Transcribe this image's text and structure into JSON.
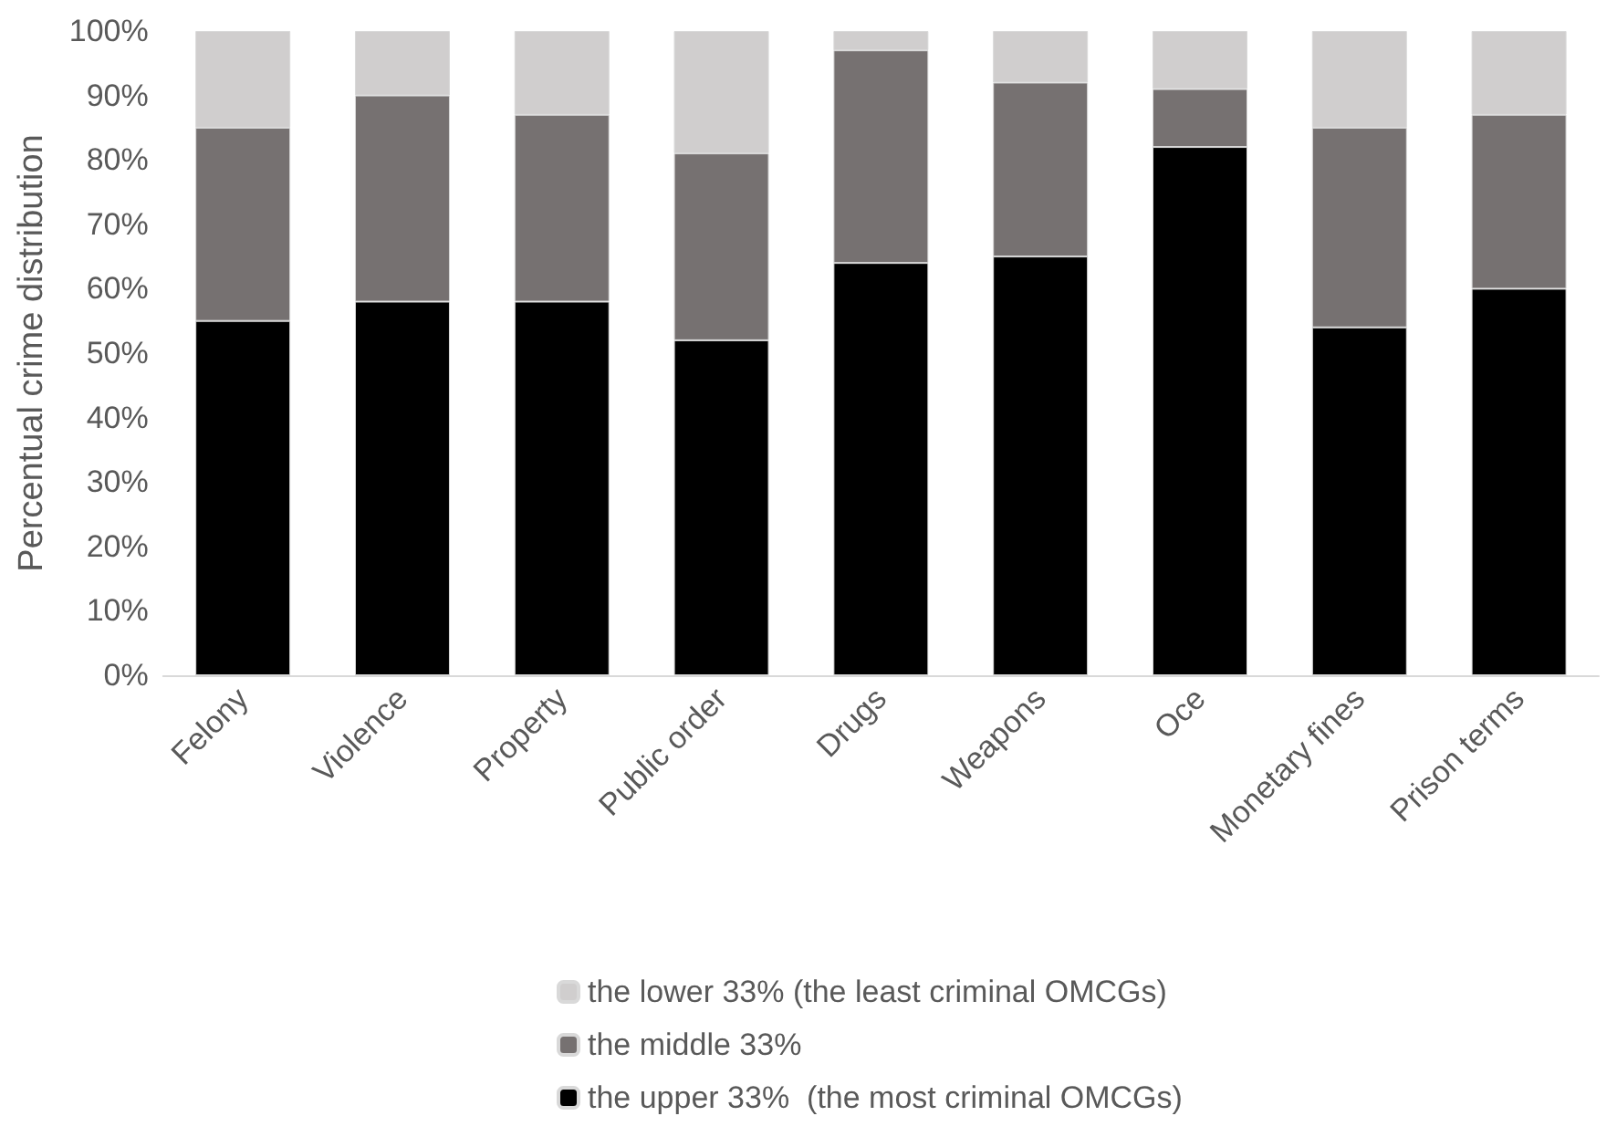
{
  "chart_data": {
    "type": "bar",
    "stacked": true,
    "ylabel": "Percentual crime distribution",
    "categories": [
      "Felony",
      "Violence",
      "Property",
      "Public order",
      "Drugs",
      "Weapons",
      "Oce",
      "Monetary fines",
      "Prison terms"
    ],
    "series": [
      {
        "name": "the upper 33%  (the most criminal OMCGs)",
        "color": "#000000",
        "values": [
          55,
          58,
          58,
          52,
          64,
          65,
          82,
          54,
          60
        ]
      },
      {
        "name": "the middle 33%",
        "color": "#767171",
        "values": [
          30,
          32,
          29,
          29,
          33,
          27,
          9,
          31,
          27
        ]
      },
      {
        "name": "the lower 33% (the least criminal OMCGs)",
        "color": "#d0cece",
        "values": [
          15,
          10,
          13,
          19,
          3,
          8,
          9,
          15,
          13
        ]
      }
    ],
    "ylim": [
      0,
      100
    ],
    "yticks": [
      {
        "value": 0,
        "label": "0%"
      },
      {
        "value": 10,
        "label": "10%"
      },
      {
        "value": 20,
        "label": "20%"
      },
      {
        "value": 30,
        "label": "30%"
      },
      {
        "value": 40,
        "label": "40%"
      },
      {
        "value": 50,
        "label": "50%"
      },
      {
        "value": 60,
        "label": "60%"
      },
      {
        "value": 70,
        "label": "70%"
      },
      {
        "value": 80,
        "label": "80%"
      },
      {
        "value": 90,
        "label": "90%"
      },
      {
        "value": 100,
        "label": "100%"
      }
    ],
    "grid": false,
    "legend": "bottom"
  }
}
